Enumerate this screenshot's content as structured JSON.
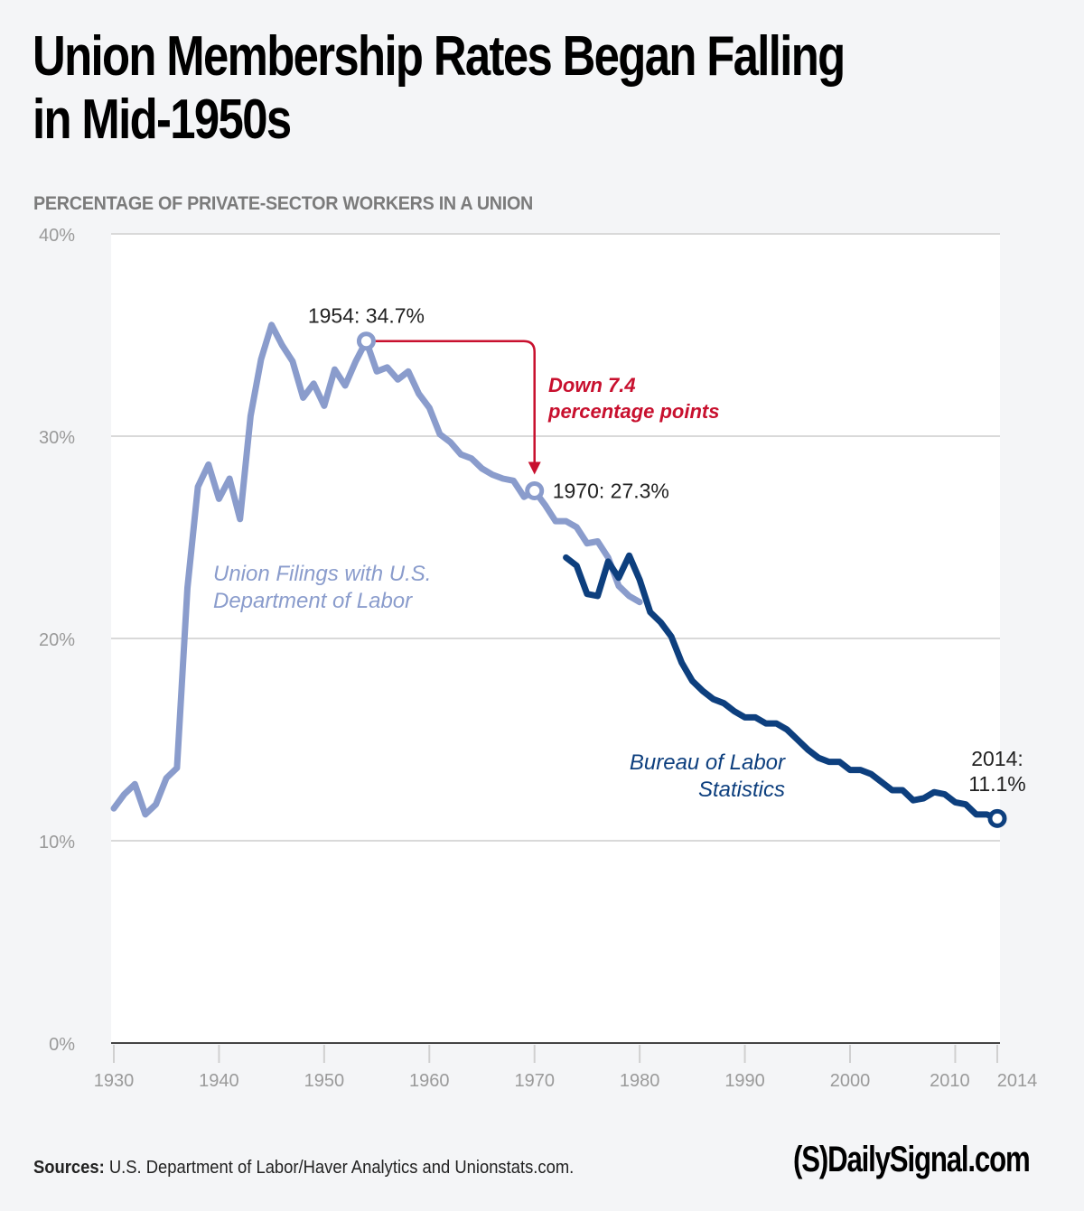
{
  "header": {
    "title_line1": "Union Membership Rates Began Falling",
    "title_line2": "in Mid-1950s",
    "subtitle": "PERCENTAGE OF PRIVATE-SECTOR WORKERS IN A UNION"
  },
  "footer": {
    "sources_label": "Sources:",
    "sources_text": " U.S. Department of Labor/Haver Analytics and Unionstats.com.",
    "logo_text": "(S)DailySignal.com"
  },
  "colors": {
    "page_bg": "#f4f5f7",
    "plot_bg": "#ffffff",
    "series_dol": "#8a9ccc",
    "series_bls": "#0d3f7e",
    "annotation_red": "#c8102e",
    "grid": "#d9d9d9",
    "tick_text": "#999999"
  },
  "chart_data": {
    "type": "line",
    "title": "Union Membership Rates Began Falling in Mid-1950s",
    "ylabel": "PERCENTAGE OF PRIVATE-SECTOR WORKERS IN A UNION",
    "xlabel": "",
    "xlim": [
      1930,
      2014
    ],
    "ylim": [
      0,
      40
    ],
    "grid": true,
    "yticks": [
      0,
      10,
      20,
      30,
      40
    ],
    "ytick_labels": [
      "0%",
      "10%",
      "20%",
      "30%",
      "40%"
    ],
    "xticks": [
      1930,
      1940,
      1950,
      1960,
      1970,
      1980,
      1990,
      2000,
      2010,
      2014
    ],
    "xtick_labels": [
      "1930",
      "1940",
      "1950",
      "1960",
      "1970",
      "1980",
      "1990",
      "2000",
      "2010",
      "2014"
    ],
    "series": [
      {
        "name": "Union Filings with U.S. Department of Labor",
        "label_line1": "Union Filings with U.S.",
        "label_line2": "Department of Labor",
        "x": [
          1930,
          1931,
          1932,
          1933,
          1934,
          1935,
          1936,
          1937,
          1938,
          1939,
          1940,
          1941,
          1942,
          1943,
          1944,
          1945,
          1946,
          1947,
          1948,
          1949,
          1950,
          1951,
          1952,
          1953,
          1954,
          1955,
          1956,
          1957,
          1958,
          1959,
          1960,
          1961,
          1962,
          1963,
          1964,
          1965,
          1966,
          1967,
          1968,
          1969,
          1970,
          1971,
          1972,
          1973,
          1974,
          1975,
          1976,
          1977,
          1978,
          1979,
          1980
        ],
        "values": [
          11.6,
          12.3,
          12.8,
          11.3,
          11.8,
          13.1,
          13.6,
          22.5,
          27.5,
          28.6,
          26.9,
          27.9,
          25.9,
          31.0,
          33.8,
          35.5,
          34.5,
          33.7,
          31.9,
          32.6,
          31.5,
          33.3,
          32.5,
          33.7,
          34.7,
          33.2,
          33.4,
          32.8,
          33.2,
          32.1,
          31.4,
          30.1,
          29.7,
          29.1,
          28.9,
          28.4,
          28.1,
          27.9,
          27.8,
          27.0,
          27.3,
          26.6,
          25.8,
          25.8,
          25.5,
          24.7,
          24.8,
          24.0,
          22.6,
          22.1,
          21.8
        ]
      },
      {
        "name": "Bureau of Labor Statistics",
        "label_line1": "Bureau of Labor",
        "label_line2": "Statistics",
        "x": [
          1973,
          1974,
          1975,
          1976,
          1977,
          1978,
          1979,
          1980,
          1981,
          1982,
          1983,
          1984,
          1985,
          1986,
          1987,
          1988,
          1989,
          1990,
          1991,
          1992,
          1993,
          1994,
          1995,
          1996,
          1997,
          1998,
          1999,
          2000,
          2001,
          2002,
          2003,
          2004,
          2005,
          2006,
          2007,
          2008,
          2009,
          2010,
          2011,
          2012,
          2013,
          2014
        ],
        "values": [
          24.0,
          23.6,
          22.2,
          22.1,
          23.8,
          23.0,
          24.1,
          22.9,
          21.3,
          20.8,
          20.1,
          18.8,
          17.9,
          17.4,
          17.0,
          16.8,
          16.4,
          16.1,
          16.1,
          15.8,
          15.8,
          15.5,
          15.0,
          14.5,
          14.1,
          13.9,
          13.9,
          13.5,
          13.5,
          13.3,
          12.9,
          12.5,
          12.5,
          12.0,
          12.1,
          12.4,
          12.3,
          11.9,
          11.8,
          11.3,
          11.3,
          11.1
        ]
      }
    ],
    "annotations": [
      {
        "year": 1954,
        "value": 34.7,
        "text": "1954: 34.7%"
      },
      {
        "year": 1970,
        "value": 27.3,
        "text": "1970: 27.3%"
      },
      {
        "year": 2014,
        "value": 11.1,
        "text_line1": "2014:",
        "text_line2": "11.1%"
      },
      {
        "type": "arrow",
        "from_year": 1954,
        "to_year": 1970,
        "text_line1": "Down 7.4",
        "text_line2": "percentage points"
      }
    ]
  }
}
